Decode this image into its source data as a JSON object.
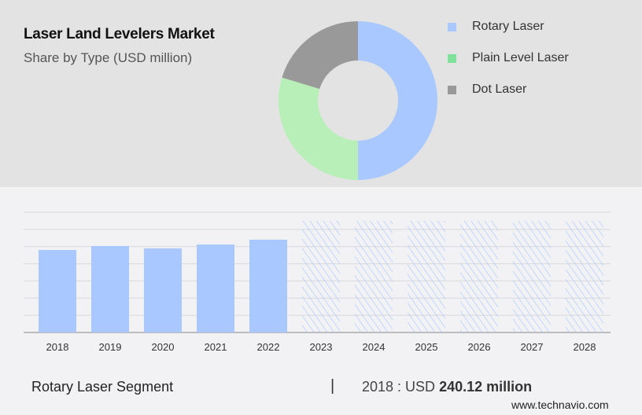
{
  "chart_data": [
    {
      "type": "pie",
      "title": "Laser Land Levelers Market",
      "subtitle": "Share by Type (USD million)",
      "labels": [
        "Rotary Laser",
        "Plain Level Laser",
        "Dot Laser"
      ],
      "values": [
        50,
        29.7,
        20.3
      ],
      "colors": [
        "#a8c8ff",
        "#b8eeb8",
        "#999999"
      ],
      "legend_colors": [
        "#a8c8ff",
        "#7ee29a",
        "#999999"
      ]
    },
    {
      "type": "bar",
      "categories": [
        "2018",
        "2019",
        "2020",
        "2021",
        "2022",
        "2023",
        "2024",
        "2025",
        "2026",
        "2027",
        "2028"
      ],
      "values": [
        240.12,
        251.6,
        244.7,
        256,
        270,
        325,
        325,
        325,
        325,
        325,
        325
      ],
      "forecast_from": "2023",
      "ylim": [
        0,
        350
      ],
      "grid": true,
      "color": "#a8c8ff"
    }
  ],
  "footer": {
    "segment": "Rotary Laser Segment",
    "separator": "|",
    "year_label": "2018 : USD",
    "value": "240.12 million",
    "site": "www.technavio.com"
  }
}
